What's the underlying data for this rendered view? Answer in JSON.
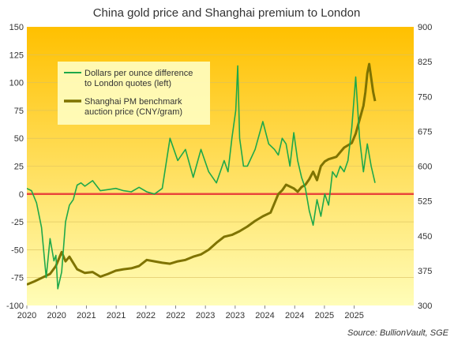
{
  "chart_data": {
    "type": "line",
    "title": "China gold price and Shanghai premium to London",
    "source": "Source: BullionVault, SGE",
    "x_tick_labels": [
      "2020",
      "2020",
      "2021",
      "2021",
      "2022",
      "2022",
      "2023",
      "2023",
      "2024",
      "2024",
      "2025",
      "2025"
    ],
    "x_tick_fracs": [
      0,
      0.0769,
      0.1538,
      0.2308,
      0.3077,
      0.3846,
      0.4615,
      0.5385,
      0.6154,
      0.6923,
      0.7692,
      0.8462
    ],
    "y_left": {
      "ylim": [
        -100,
        150
      ],
      "ticks": [
        -100,
        -75,
        -50,
        -25,
        0,
        25,
        50,
        75,
        100,
        125,
        150
      ]
    },
    "y_right": {
      "ylim": [
        300,
        900
      ],
      "ticks": [
        300,
        375,
        450,
        525,
        600,
        675,
        750,
        825,
        900
      ]
    },
    "zero_line_color": "#e8463c",
    "background_top": "#ffc000",
    "background_bottom": "#fffdb8",
    "legend": {
      "placement": "top-left"
    },
    "series": [
      {
        "name": "Dollars per ounce difference to London quotes (left)",
        "axis": "left",
        "color": "#1ea84a",
        "x": [
          0,
          0.012,
          0.025,
          0.038,
          0.05,
          0.06,
          0.07,
          0.075,
          0.08,
          0.09,
          0.1,
          0.11,
          0.12,
          0.13,
          0.14,
          0.15,
          0.17,
          0.19,
          0.21,
          0.23,
          0.25,
          0.27,
          0.29,
          0.31,
          0.33,
          0.35,
          0.37,
          0.39,
          0.41,
          0.43,
          0.45,
          0.47,
          0.49,
          0.51,
          0.52,
          0.53,
          0.54,
          0.545,
          0.55,
          0.56,
          0.57,
          0.59,
          0.61,
          0.625,
          0.64,
          0.65,
          0.66,
          0.67,
          0.68,
          0.69,
          0.7,
          0.71,
          0.72,
          0.73,
          0.74,
          0.75,
          0.76,
          0.77,
          0.78,
          0.79,
          0.8,
          0.81,
          0.82,
          0.83,
          0.84,
          0.85,
          0.86,
          0.87,
          0.88,
          0.89,
          0.9,
          0.9
        ],
        "y": [
          5,
          3,
          -8,
          -30,
          -75,
          -40,
          -60,
          -55,
          -85,
          -70,
          -25,
          -10,
          -5,
          8,
          10,
          7,
          12,
          3,
          4,
          5,
          3,
          2,
          6,
          2,
          0,
          5,
          50,
          30,
          40,
          15,
          40,
          20,
          10,
          30,
          20,
          50,
          75,
          115,
          50,
          25,
          25,
          40,
          65,
          45,
          40,
          35,
          50,
          45,
          25,
          55,
          30,
          15,
          5,
          -15,
          -28,
          -5,
          -20,
          0,
          -10,
          20,
          15,
          25,
          20,
          30,
          60,
          105,
          50,
          20,
          45,
          25,
          10,
          10
        ]
      },
      {
        "name": "Shanghai PM benchmark auction price (CNY/gram)",
        "axis": "right",
        "color": "#7f7300",
        "x": [
          0,
          0.02,
          0.04,
          0.06,
          0.075,
          0.09,
          0.1,
          0.11,
          0.13,
          0.15,
          0.17,
          0.19,
          0.21,
          0.23,
          0.25,
          0.27,
          0.29,
          0.31,
          0.33,
          0.35,
          0.37,
          0.39,
          0.41,
          0.43,
          0.45,
          0.47,
          0.49,
          0.51,
          0.53,
          0.55,
          0.57,
          0.59,
          0.61,
          0.63,
          0.65,
          0.66,
          0.67,
          0.69,
          0.7,
          0.71,
          0.72,
          0.73,
          0.74,
          0.75,
          0.76,
          0.77,
          0.78,
          0.8,
          0.82,
          0.84,
          0.85,
          0.86,
          0.87,
          0.875,
          0.88,
          0.885,
          0.89,
          0.895,
          0.9
        ],
        "y": [
          345,
          352,
          360,
          368,
          385,
          415,
          395,
          405,
          378,
          370,
          372,
          362,
          368,
          375,
          378,
          380,
          385,
          398,
          395,
          392,
          390,
          395,
          398,
          405,
          410,
          420,
          435,
          448,
          452,
          460,
          470,
          482,
          492,
          500,
          540,
          548,
          560,
          552,
          545,
          555,
          560,
          572,
          588,
          570,
          600,
          610,
          615,
          620,
          640,
          650,
          670,
          700,
          730,
          760,
          800,
          820,
          790,
          760,
          740
        ]
      }
    ]
  }
}
